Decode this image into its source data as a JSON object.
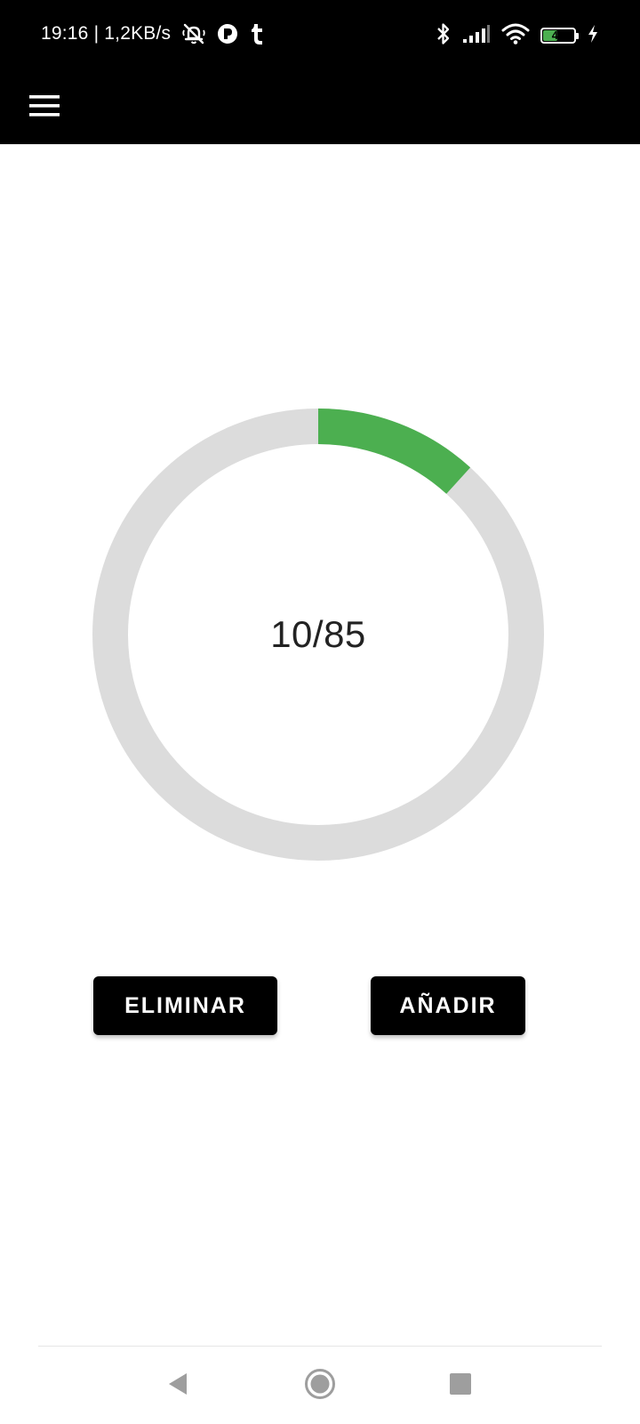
{
  "status_bar": {
    "time_and_speed": "19:16 | 1,2KB/s",
    "battery_level": "48",
    "battery_fraction": 0.48,
    "left_icons": [
      "muted-bell-icon",
      "app-notification-icon",
      "tumblr-icon"
    ],
    "right_icons": [
      "bluetooth-icon",
      "signal-icon",
      "wifi-icon",
      "battery-icon",
      "charging-icon"
    ]
  },
  "app_bar": {
    "menu_icon": "menu-icon"
  },
  "counter": {
    "current": 10,
    "total": 85,
    "text": "10/85"
  },
  "buttons": {
    "remove_label": "ELIMINAR",
    "add_label": "AÑADIR"
  },
  "nav_bar": {
    "back_icon": "back-icon",
    "home_icon": "home-icon",
    "recents_icon": "recents-icon"
  },
  "colors": {
    "progress": "#4caf50",
    "track": "#dcdcdc",
    "bars": "#000000",
    "button_bg": "#000000",
    "button_text": "#ffffff"
  }
}
